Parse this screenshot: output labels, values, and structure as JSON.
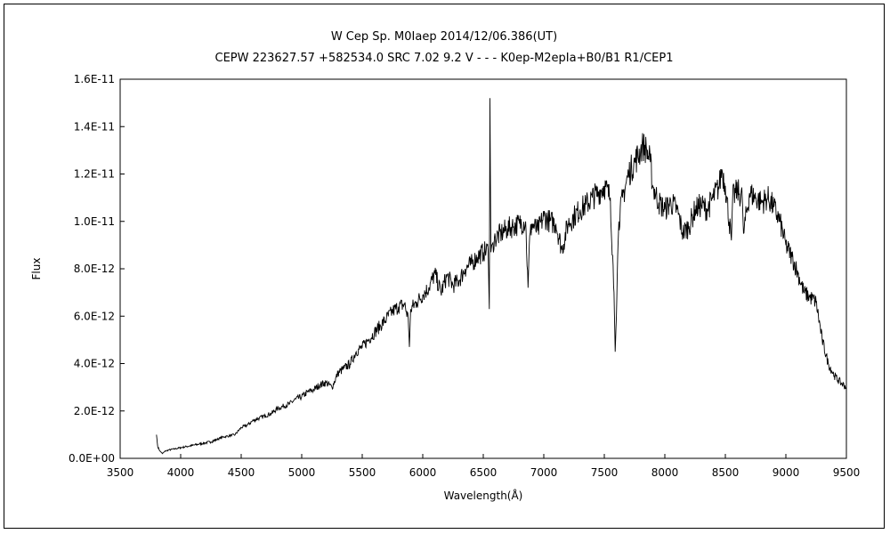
{
  "chart_data": {
    "type": "line",
    "title": "W Cep    Sp. M0Iaep    2014/12/06.386(UT)",
    "subtitle": "CEPW 223627.57 +582534.0 SRC 7.02 9.2 V - - - K0ep-M2epIa+B0/B1 R1/CEP1",
    "xlabel": "Wavelength(Å)",
    "ylabel": "Flux",
    "xlim": [
      3500,
      9500
    ],
    "ylim": [
      0,
      1.6e-11
    ],
    "x_ticks": [
      3500,
      4000,
      4500,
      5000,
      5500,
      6000,
      6500,
      7000,
      7500,
      8000,
      8500,
      9000,
      9500
    ],
    "y_ticks": [
      0,
      2e-12,
      4e-12,
      6e-12,
      8e-12,
      1e-11,
      1.2e-11,
      1.4e-11,
      1.6e-11
    ],
    "x_tick_labels": [
      "3500",
      "4000",
      "4500",
      "5000",
      "5500",
      "6000",
      "6500",
      "7000",
      "7500",
      "8000",
      "8500",
      "9000",
      "9500"
    ],
    "y_tick_labels": [
      "0.0E+00",
      "2.0E-12",
      "4.0E-12",
      "6.0E-12",
      "8.0E-12",
      "1.0E-11",
      "1.2E-11",
      "1.4E-11",
      "1.6E-11"
    ],
    "grid": false,
    "series": [
      {
        "x": [
          3800,
          3810,
          3830,
          3850,
          3870,
          3900,
          3950,
          4000,
          4050,
          4100,
          4150,
          4200,
          4250,
          4300,
          4350,
          4400,
          4450,
          4500,
          4550,
          4600,
          4650,
          4700,
          4750,
          4800,
          4850,
          4900,
          4950,
          5000,
          5050,
          5100,
          5150,
          5200,
          5250,
          5300,
          5350,
          5400,
          5450,
          5500,
          5550,
          5600,
          5650,
          5700,
          5750,
          5800,
          5850,
          5880,
          5890,
          5900,
          5950,
          6000,
          6050,
          6100,
          6150,
          6200,
          6250,
          6300,
          6350,
          6400,
          6450,
          6500,
          6540,
          6550,
          6555,
          6563,
          6570,
          6580,
          6600,
          6650,
          6700,
          6750,
          6800,
          6850,
          6870,
          6880,
          6900,
          6950,
          7000,
          7050,
          7100,
          7150,
          7200,
          7250,
          7300,
          7350,
          7400,
          7450,
          7500,
          7550,
          7580,
          7590,
          7600,
          7610,
          7620,
          7650,
          7700,
          7750,
          7800,
          7820,
          7850,
          7880,
          7900,
          7950,
          8000,
          8050,
          8100,
          8150,
          8200,
          8250,
          8300,
          8350,
          8400,
          8450,
          8470,
          8500,
          8550,
          8560,
          8600,
          8640,
          8650,
          8700,
          8750,
          8800,
          8850,
          8900,
          8950,
          9000,
          9050,
          9100,
          9150,
          9200,
          9250,
          9300,
          9350,
          9400,
          9450,
          9500
        ],
        "y": [
          1e-12,
          5e-13,
          3e-13,
          2e-13,
          3e-13,
          3.5e-13,
          4e-13,
          4.5e-13,
          5e-13,
          5.5e-13,
          6e-13,
          6.5e-13,
          7e-13,
          8e-13,
          9e-13,
          9.5e-13,
          1e-12,
          1.3e-12,
          1.4e-12,
          1.6e-12,
          1.7e-12,
          1.8e-12,
          1.9e-12,
          2.1e-12,
          2.2e-12,
          2.3e-12,
          2.5e-12,
          2.6e-12,
          2.8e-12,
          2.9e-12,
          3.1e-12,
          3.2e-12,
          3e-12,
          3.6e-12,
          3.8e-12,
          4e-12,
          4.5e-12,
          4.7e-12,
          5e-12,
          5.3e-12,
          5.6e-12,
          5.9e-12,
          6.2e-12,
          6.4e-12,
          6.5e-12,
          5.9e-12,
          4.7e-12,
          6.3e-12,
          6.6e-12,
          6.9e-12,
          7.2e-12,
          7.8e-12,
          7e-12,
          7.7e-12,
          7.3e-12,
          7.5e-12,
          8e-12,
          8.2e-12,
          8.5e-12,
          8.7e-12,
          8.8e-12,
          6.3e-12,
          1.52e-11,
          8.7e-12,
          9e-12,
          9.1e-12,
          9.3e-12,
          9.5e-12,
          9.7e-12,
          9.8e-12,
          9.9e-12,
          1e-11,
          7.2e-12,
          9e-12,
          9.9e-12,
          9.6e-12,
          1.02e-11,
          1e-11,
          9.9e-12,
          8.8e-12,
          9.9e-12,
          1.02e-11,
          1.05e-11,
          1.07e-11,
          1.1e-11,
          1.12e-11,
          1.15e-11,
          1.1e-11,
          7e-12,
          4.5e-12,
          6e-12,
          8.5e-12,
          1e-11,
          1.1e-11,
          1.2e-11,
          1.25e-11,
          1.3e-11,
          1.32e-11,
          1.3e-11,
          1.25e-11,
          1.15e-11,
          1.08e-11,
          1.05e-11,
          1.08e-11,
          1.05e-11,
          9.5e-12,
          9.8e-12,
          1.05e-11,
          1.07e-11,
          1.05e-11,
          1.1e-11,
          1.15e-11,
          1.22e-11,
          1.15e-11,
          9.2e-12,
          1.1e-11,
          1.13e-11,
          1.1e-11,
          9.5e-12,
          1.12e-11,
          1.1e-11,
          1.08e-11,
          1.1e-11,
          1.06e-11,
          1e-11,
          9e-12,
          8.5e-12,
          7.8e-12,
          7e-12,
          6.8e-12,
          6.6e-12,
          5e-12,
          4e-12,
          3.5e-12,
          3.2e-12,
          3e-12
        ]
      }
    ]
  }
}
